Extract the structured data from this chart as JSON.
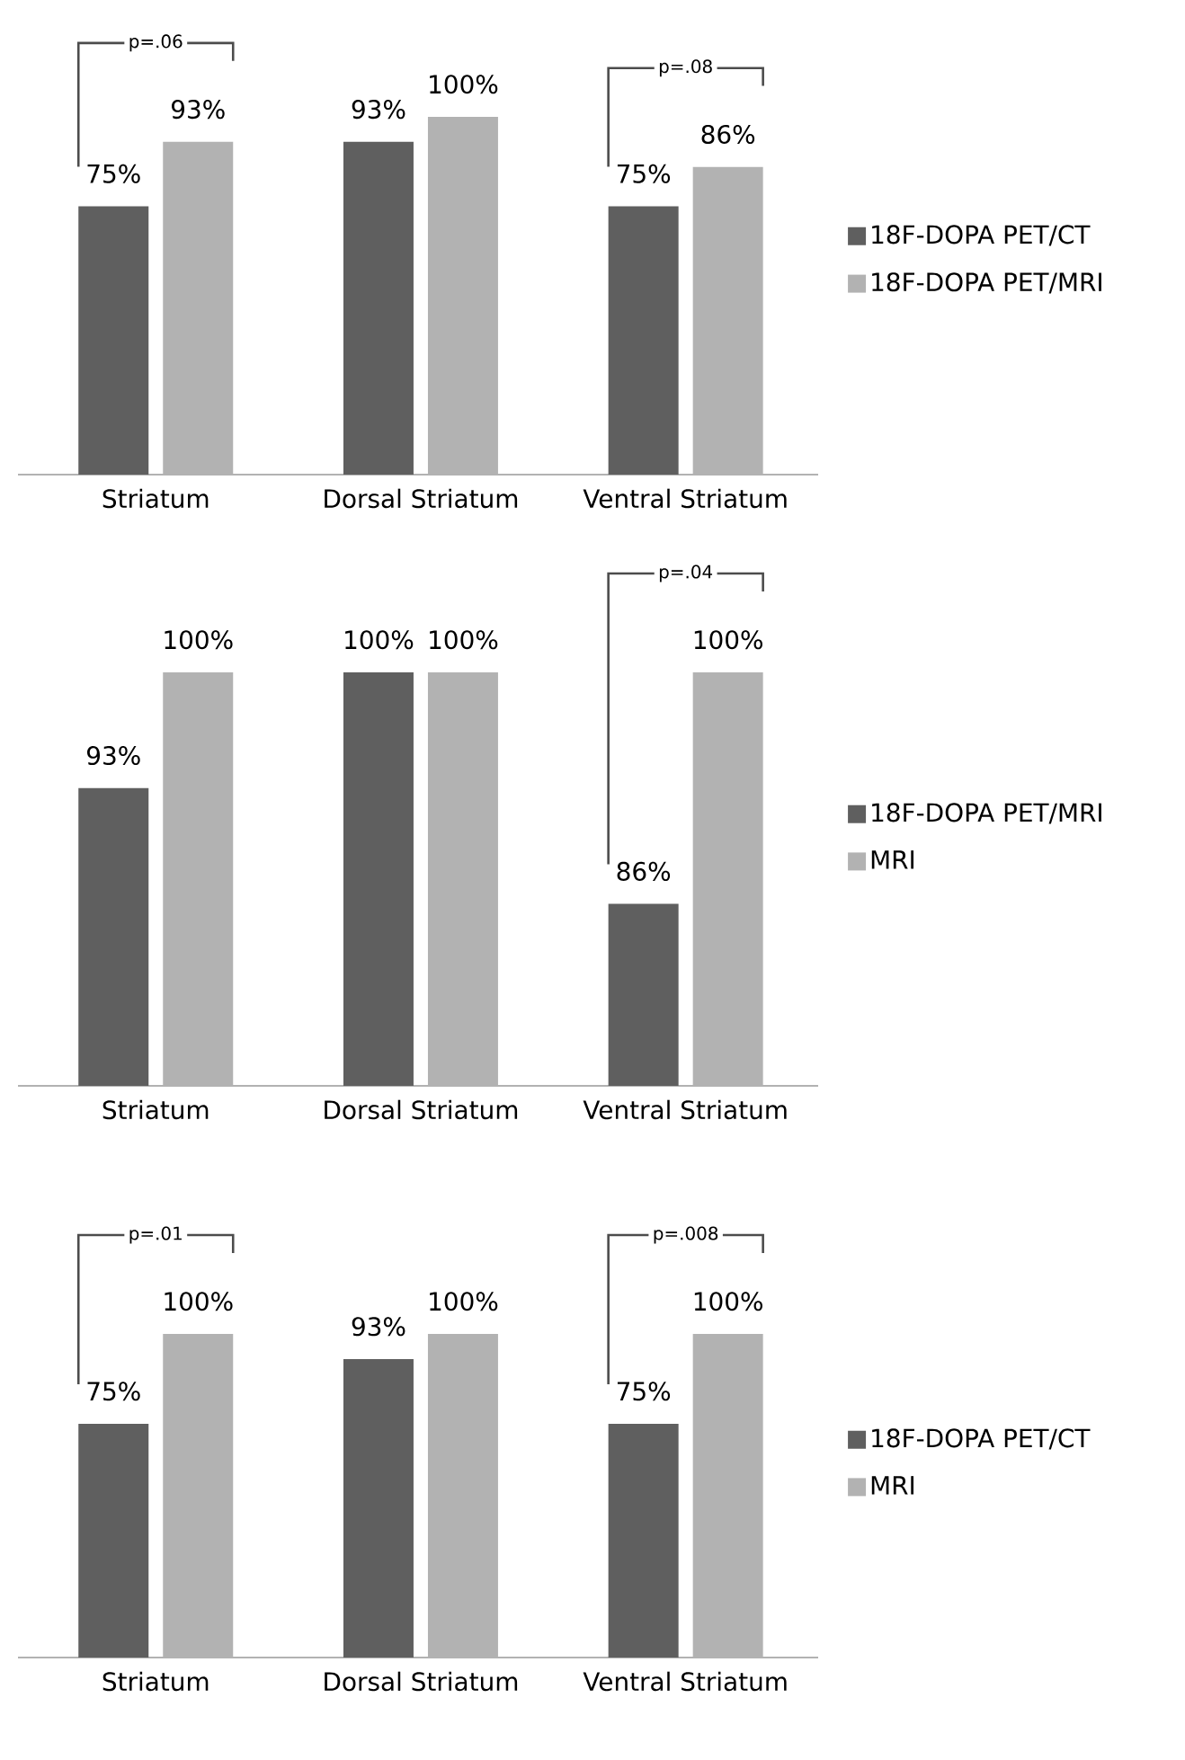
{
  "chart_data": [
    {
      "type": "bar",
      "categories": [
        "Striatum",
        "Dorsal Striatum",
        "Ventral Striatum"
      ],
      "series": [
        {
          "name": "18F-DOPA PET/CT",
          "color": "#5f5f5f",
          "values": [
            75,
            93,
            75
          ],
          "value_labels": [
            "75%",
            "93%",
            "75%"
          ]
        },
        {
          "name": "18F-DOPA PET/MRI",
          "color": "#b2b2b2",
          "values": [
            93,
            100,
            86
          ],
          "value_labels": [
            "93%",
            "100%",
            "86%"
          ]
        }
      ],
      "ylim": [
        0,
        100
      ],
      "legend": "right",
      "annotations": [
        "p=.06",
        "p=.08"
      ]
    },
    {
      "type": "bar",
      "categories": [
        "Striatum",
        "Dorsal Striatum",
        "Ventral Striatum"
      ],
      "series": [
        {
          "name": "18F-DOPA PET/MRI",
          "color": "#5f5f5f",
          "values": [
            93,
            100,
            86
          ],
          "value_labels": [
            "93%",
            "100%",
            "86%"
          ]
        },
        {
          "name": "MRI",
          "color": "#b2b2b2",
          "values": [
            100,
            100,
            100
          ],
          "value_labels": [
            "100%",
            "100%",
            "100%"
          ]
        }
      ],
      "ylim": [
        75,
        100
      ],
      "legend": "right",
      "annotations": [
        "p=.04"
      ]
    },
    {
      "type": "bar",
      "categories": [
        "Striatum",
        "Dorsal Striatum",
        "Ventral Striatum"
      ],
      "series": [
        {
          "name": "18F-DOPA PET/CT",
          "color": "#5f5f5f",
          "values": [
            75,
            93,
            75
          ],
          "value_labels": [
            "75%",
            "93%",
            "75%"
          ]
        },
        {
          "name": "MRI",
          "color": "#b2b2b2",
          "values": [
            100,
            100,
            100
          ],
          "value_labels": [
            "100%",
            "100%",
            "100%"
          ]
        }
      ],
      "ylim": [
        10,
        100
      ],
      "legend": "right",
      "annotations": [
        "p=.01",
        "p=.008"
      ]
    }
  ]
}
